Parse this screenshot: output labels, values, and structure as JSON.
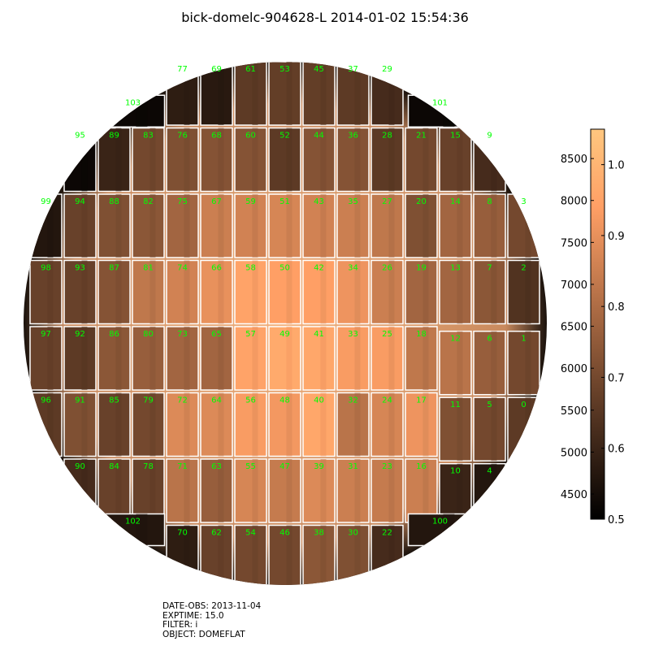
{
  "title": "bick-domelc-904628-L 2014-01-02 15:54:36",
  "metadata": {
    "date_obs": "DATE-OBS: 2013-11-04",
    "exptime": "EXPTIME: 15.0",
    "filter": "FILTER: i",
    "object": "OBJECT: DOMEFLAT"
  },
  "colors": {
    "label": "#00ff00",
    "border": "#ffffff"
  },
  "chart_data": {
    "type": "heatmap",
    "colormap": "copper",
    "colorbar": {
      "left_ticks": [
        "8500",
        "8000",
        "7500",
        "7000",
        "6500",
        "6000",
        "5500",
        "5000",
        "4500"
      ],
      "right_ticks": [
        "1.0",
        "0.9",
        "0.8",
        "0.7",
        "0.6",
        "0.5"
      ],
      "left_range": [
        4200,
        8850
      ],
      "right_range": [
        0.5,
        1.05
      ]
    },
    "ccds": [
      {
        "id": "77",
        "row": 0,
        "col": 4,
        "v": 0.58
      },
      {
        "id": "69",
        "row": 0,
        "col": 5,
        "v": 0.57
      },
      {
        "id": "61",
        "row": 0,
        "col": 6,
        "v": 0.66
      },
      {
        "id": "53",
        "row": 0,
        "col": 7,
        "v": 0.67
      },
      {
        "id": "45",
        "row": 0,
        "col": 8,
        "v": 0.67
      },
      {
        "id": "37",
        "row": 0,
        "col": 9,
        "v": 0.66
      },
      {
        "id": "29",
        "row": 0,
        "col": 10,
        "v": 0.62
      },
      {
        "id": "103",
        "row": 0.5,
        "col": 2.5,
        "v": 0.52,
        "wide": true
      },
      {
        "id": "101",
        "row": 0.5,
        "col": 11.5,
        "v": 0.52,
        "wide": true
      },
      {
        "id": "95",
        "row": 1,
        "col": 1,
        "v": 0.52
      },
      {
        "id": "89",
        "row": 1,
        "col": 2,
        "v": 0.6
      },
      {
        "id": "83",
        "row": 1,
        "col": 3,
        "v": 0.7
      },
      {
        "id": "76",
        "row": 1,
        "col": 4,
        "v": 0.72
      },
      {
        "id": "68",
        "row": 1,
        "col": 5,
        "v": 0.73
      },
      {
        "id": "60",
        "row": 1,
        "col": 6,
        "v": 0.73
      },
      {
        "id": "52",
        "row": 1,
        "col": 7,
        "v": 0.66
      },
      {
        "id": "44",
        "row": 1,
        "col": 8,
        "v": 0.73
      },
      {
        "id": "36",
        "row": 1,
        "col": 9,
        "v": 0.73
      },
      {
        "id": "28",
        "row": 1,
        "col": 10,
        "v": 0.66
      },
      {
        "id": "21",
        "row": 1,
        "col": 11,
        "v": 0.7
      },
      {
        "id": "15",
        "row": 1,
        "col": 12,
        "v": 0.68
      },
      {
        "id": "9",
        "row": 1,
        "col": 13,
        "v": 0.62
      },
      {
        "id": "99",
        "row": 2,
        "col": 0,
        "v": 0.56
      },
      {
        "id": "94",
        "row": 2,
        "col": 1,
        "v": 0.68
      },
      {
        "id": "88",
        "row": 2,
        "col": 2,
        "v": 0.72
      },
      {
        "id": "82",
        "row": 2,
        "col": 3,
        "v": 0.74
      },
      {
        "id": "75",
        "row": 2,
        "col": 4,
        "v": 0.78
      },
      {
        "id": "67",
        "row": 2,
        "col": 5,
        "v": 0.85
      },
      {
        "id": "59",
        "row": 2,
        "col": 6,
        "v": 0.86
      },
      {
        "id": "51",
        "row": 2,
        "col": 7,
        "v": 0.87
      },
      {
        "id": "43",
        "row": 2,
        "col": 8,
        "v": 0.86
      },
      {
        "id": "35",
        "row": 2,
        "col": 9,
        "v": 0.85
      },
      {
        "id": "27",
        "row": 2,
        "col": 10,
        "v": 0.83
      },
      {
        "id": "20",
        "row": 2,
        "col": 11,
        "v": 0.72
      },
      {
        "id": "14",
        "row": 2,
        "col": 12,
        "v": 0.78
      },
      {
        "id": "8",
        "row": 2,
        "col": 13,
        "v": 0.76
      },
      {
        "id": "3",
        "row": 2,
        "col": 14,
        "v": 0.7
      },
      {
        "id": "98",
        "row": 3,
        "col": 0,
        "v": 0.68
      },
      {
        "id": "93",
        "row": 3,
        "col": 1,
        "v": 0.68
      },
      {
        "id": "87",
        "row": 3,
        "col": 2,
        "v": 0.73
      },
      {
        "id": "81",
        "row": 3,
        "col": 3,
        "v": 0.83
      },
      {
        "id": "74",
        "row": 3,
        "col": 4,
        "v": 0.86
      },
      {
        "id": "66",
        "row": 3,
        "col": 5,
        "v": 0.9
      },
      {
        "id": "58",
        "row": 3,
        "col": 6,
        "v": 0.95
      },
      {
        "id": "50",
        "row": 3,
        "col": 7,
        "v": 0.94
      },
      {
        "id": "42",
        "row": 3,
        "col": 8,
        "v": 0.94
      },
      {
        "id": "34",
        "row": 3,
        "col": 9,
        "v": 0.91
      },
      {
        "id": "26",
        "row": 3,
        "col": 10,
        "v": 0.85
      },
      {
        "id": "19",
        "row": 3,
        "col": 11,
        "v": 0.78
      },
      {
        "id": "13",
        "row": 3,
        "col": 12,
        "v": 0.78
      },
      {
        "id": "7",
        "row": 3,
        "col": 13,
        "v": 0.74
      },
      {
        "id": "2",
        "row": 3,
        "col": 14,
        "v": 0.64
      },
      {
        "id": "97",
        "row": 4,
        "col": 0,
        "v": 0.68
      },
      {
        "id": "92",
        "row": 4,
        "col": 1,
        "v": 0.66
      },
      {
        "id": "86",
        "row": 4,
        "col": 2,
        "v": 0.74
      },
      {
        "id": "80",
        "row": 4,
        "col": 3,
        "v": 0.76
      },
      {
        "id": "73",
        "row": 4,
        "col": 4,
        "v": 0.78
      },
      {
        "id": "65",
        "row": 4,
        "col": 5,
        "v": 0.78
      },
      {
        "id": "57",
        "row": 4,
        "col": 6,
        "v": 0.95
      },
      {
        "id": "49",
        "row": 4,
        "col": 7,
        "v": 0.97
      },
      {
        "id": "41",
        "row": 4,
        "col": 8,
        "v": 0.96
      },
      {
        "id": "33",
        "row": 4,
        "col": 9,
        "v": 0.93
      },
      {
        "id": "25",
        "row": 4,
        "col": 10,
        "v": 0.93
      },
      {
        "id": "18",
        "row": 4,
        "col": 11,
        "v": 0.83
      },
      {
        "id": "12",
        "row": 4.07,
        "col": 12,
        "v": 0.82
      },
      {
        "id": "6",
        "row": 4.07,
        "col": 13,
        "v": 0.76
      },
      {
        "id": "1",
        "row": 4.07,
        "col": 14,
        "v": 0.7
      },
      {
        "id": "96",
        "row": 5,
        "col": 0,
        "v": 0.66
      },
      {
        "id": "91",
        "row": 5,
        "col": 1,
        "v": 0.72
      },
      {
        "id": "85",
        "row": 5,
        "col": 2,
        "v": 0.68
      },
      {
        "id": "79",
        "row": 5,
        "col": 3,
        "v": 0.7
      },
      {
        "id": "72",
        "row": 5,
        "col": 4,
        "v": 0.88
      },
      {
        "id": "64",
        "row": 5,
        "col": 5,
        "v": 0.88
      },
      {
        "id": "56",
        "row": 5,
        "col": 6,
        "v": 0.93
      },
      {
        "id": "48",
        "row": 5,
        "col": 7,
        "v": 0.92
      },
      {
        "id": "40",
        "row": 5,
        "col": 8,
        "v": 0.96
      },
      {
        "id": "32",
        "row": 5,
        "col": 9,
        "v": 0.82
      },
      {
        "id": "24",
        "row": 5,
        "col": 10,
        "v": 0.87
      },
      {
        "id": "17",
        "row": 5,
        "col": 11,
        "v": 0.91
      },
      {
        "id": "11",
        "row": 5.07,
        "col": 12,
        "v": 0.72
      },
      {
        "id": "5",
        "row": 5.07,
        "col": 13,
        "v": 0.7
      },
      {
        "id": "0",
        "row": 5.07,
        "col": 14,
        "v": 0.66
      },
      {
        "id": "90",
        "row": 6,
        "col": 1,
        "v": 0.62
      },
      {
        "id": "84",
        "row": 6,
        "col": 2,
        "v": 0.68
      },
      {
        "id": "78",
        "row": 6,
        "col": 3,
        "v": 0.68
      },
      {
        "id": "71",
        "row": 6,
        "col": 4,
        "v": 0.82
      },
      {
        "id": "63",
        "row": 6,
        "col": 5,
        "v": 0.76
      },
      {
        "id": "55",
        "row": 6,
        "col": 6,
        "v": 0.87
      },
      {
        "id": "47",
        "row": 6,
        "col": 7,
        "v": 0.84
      },
      {
        "id": "39",
        "row": 6,
        "col": 8,
        "v": 0.88
      },
      {
        "id": "31",
        "row": 6,
        "col": 9,
        "v": 0.85
      },
      {
        "id": "23",
        "row": 6,
        "col": 10,
        "v": 0.84
      },
      {
        "id": "16",
        "row": 6,
        "col": 11,
        "v": 0.85
      },
      {
        "id": "10",
        "row": 6.07,
        "col": 12,
        "v": 0.6
      },
      {
        "id": "4",
        "row": 6.07,
        "col": 13,
        "v": 0.56
      },
      {
        "id": "102",
        "row": 7,
        "col": 2.5,
        "v": 0.56,
        "wide": true
      },
      {
        "id": "100",
        "row": 7,
        "col": 11.5,
        "v": 0.56,
        "wide": true
      },
      {
        "id": "70",
        "row": 7,
        "col": 4,
        "v": 0.58
      },
      {
        "id": "62",
        "row": 7,
        "col": 5,
        "v": 0.68
      },
      {
        "id": "54",
        "row": 7,
        "col": 6,
        "v": 0.7
      },
      {
        "id": "46",
        "row": 7,
        "col": 7,
        "v": 0.7
      },
      {
        "id": "38",
        "row": 7,
        "col": 8,
        "v": 0.74
      },
      {
        "id": "30",
        "row": 7,
        "col": 9,
        "v": 0.72
      },
      {
        "id": "22",
        "row": 7,
        "col": 10,
        "v": 0.62
      }
    ]
  }
}
